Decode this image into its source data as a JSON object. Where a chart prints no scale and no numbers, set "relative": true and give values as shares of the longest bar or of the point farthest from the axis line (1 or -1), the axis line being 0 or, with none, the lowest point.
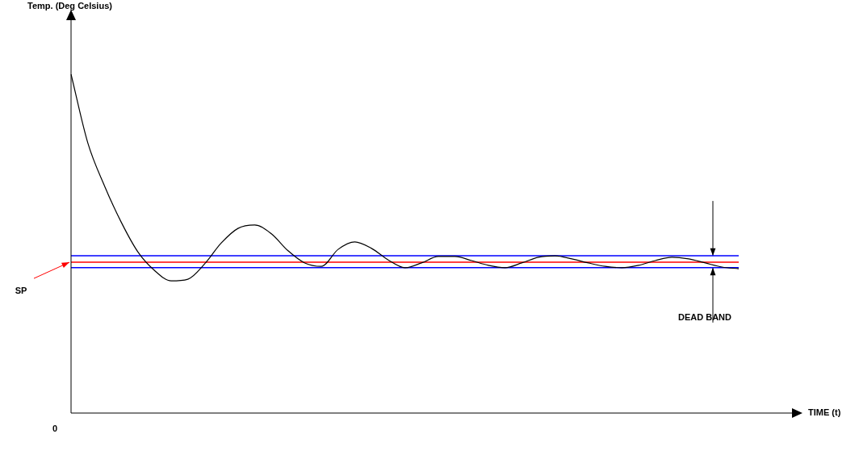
{
  "chart_data": {
    "type": "line",
    "relative": true,
    "categories": [
      null,
      null,
      null,
      null,
      null,
      null,
      null,
      null,
      null,
      null,
      null,
      null,
      null,
      null,
      null,
      null,
      null,
      null,
      null,
      null,
      null,
      null,
      null,
      null,
      null,
      null,
      null,
      null,
      null,
      null,
      null,
      null,
      null,
      null,
      null,
      null,
      null,
      null,
      null,
      null,
      null
    ],
    "series": [
      {
        "color": "#000000",
        "values": [
          1.0,
          0.798,
          0.671,
          0.564,
          0.476,
          0.421,
          0.39,
          0.395,
          0.44,
          0.502,
          0.545,
          0.555,
          0.529,
          0.479,
          0.443,
          0.433,
          0.483,
          0.505,
          0.486,
          0.452,
          0.429,
          0.443,
          0.462,
          0.462,
          0.45,
          0.436,
          0.429,
          0.443,
          0.46,
          0.464,
          0.455,
          0.443,
          0.433,
          0.429,
          0.436,
          0.45,
          0.46,
          0.455,
          0.443,
          0.431,
          0.426
        ]
      }
    ],
    "ref_lines": [
      {
        "axis": "y",
        "value": 0.445,
        "label": "SP",
        "color": "#ff0000"
      },
      {
        "axis": "y",
        "value": 0.464,
        "color": "#0000ff"
      },
      {
        "axis": "y",
        "value": 0.429,
        "color": "#0000ff"
      }
    ],
    "annotations": [
      "Temp. (Deg Celsius)",
      "TIME (t)",
      "0",
      "DEAD BAND"
    ],
    "marker": "none",
    "line_style": "solid",
    "legend": false
  }
}
